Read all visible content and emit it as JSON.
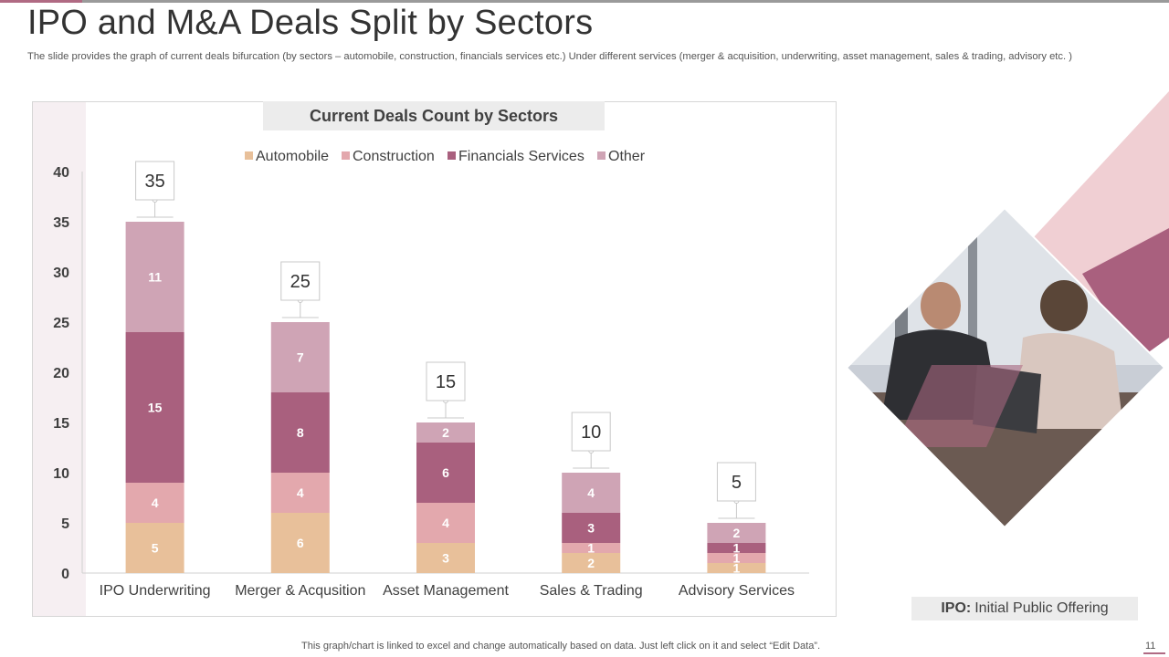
{
  "slide": {
    "title": "IPO and M&A Deals Split by Sectors",
    "subtitle": "The slide provides the graph of current deals bifurcation (by sectors – automobile, construction, financials services etc.) Under different services (merger & acquisition, underwriting, asset management, sales & trading, advisory etc. )",
    "footer_note": "This graph/chart is linked to excel and change automatically based on data. Just left click on it and select “Edit Data”.",
    "page_number": "11"
  },
  "note": {
    "abbr": "IPO:",
    "text": "Initial Public Offering"
  },
  "colors": {
    "automobile": "#e8c09a",
    "construction": "#e3a8ad",
    "financials": "#a9607e",
    "other": "#cfa4b5",
    "accent": "#b06a83"
  },
  "chart_data": {
    "type": "bar",
    "stacked": true,
    "title": "Current Deals Count by Sectors",
    "xlabel": "",
    "ylabel": "",
    "ylim": [
      0,
      40
    ],
    "yticks": [
      0,
      5,
      10,
      15,
      20,
      25,
      30,
      35,
      40
    ],
    "legend_position": "top",
    "categories": [
      "IPO Underwriting",
      "Merger & Acqusition",
      "Asset Management",
      "Sales & Trading",
      "Advisory Services"
    ],
    "series": [
      {
        "name": "Automobile",
        "values": [
          5,
          6,
          3,
          2,
          1
        ]
      },
      {
        "name": "Construction",
        "values": [
          4,
          4,
          4,
          1,
          1
        ]
      },
      {
        "name": "Financials Services",
        "values": [
          15,
          8,
          6,
          3,
          1
        ]
      },
      {
        "name": "Other",
        "values": [
          11,
          7,
          2,
          4,
          2
        ]
      }
    ],
    "totals": [
      35,
      25,
      15,
      10,
      5
    ]
  }
}
